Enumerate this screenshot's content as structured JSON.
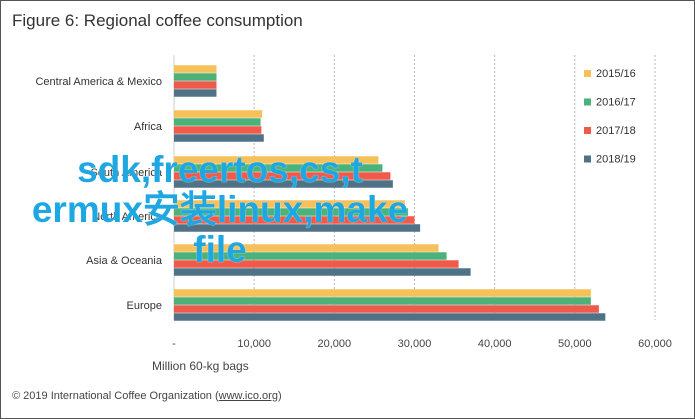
{
  "title": "Figure 6: Regional coffee consumption",
  "footer": {
    "prefix": "© 2019 International Coffee Organization (",
    "link": "www.ico.org",
    "suffix": ")"
  },
  "overlay_text": "sdk,freertos,cs,t\nermux安装linux,make\nfile",
  "chart_data": {
    "type": "bar",
    "orientation": "horizontal",
    "title": "Figure 6: Regional coffee consumption",
    "xlabel": "Million 60-kg bags",
    "ylabel": "",
    "xlim": [
      0,
      60000
    ],
    "x_ticks": [
      0,
      10000,
      20000,
      30000,
      40000,
      50000,
      60000
    ],
    "x_tick_labels": [
      "-",
      "10,000",
      "20,000",
      "30,000",
      "40,000",
      "50,000",
      "60,000"
    ],
    "grid": "vertical dashed",
    "legend_position": "top-right",
    "categories": [
      "Central America & Mexico",
      "Africa",
      "South America",
      "North America",
      "Asia & Oceania",
      "Europe"
    ],
    "series": [
      {
        "name": "2015/16",
        "color": "#F6C15A",
        "values": [
          5300,
          11000,
          25500,
          28800,
          33000,
          52000
        ]
      },
      {
        "name": "2016/17",
        "color": "#4DB27A",
        "values": [
          5300,
          10800,
          26000,
          29200,
          34000,
          52000
        ]
      },
      {
        "name": "2017/18",
        "color": "#EF5A4A",
        "values": [
          5300,
          10900,
          27000,
          30000,
          35500,
          53000
        ]
      },
      {
        "name": "2018/19",
        "color": "#4F7287",
        "values": [
          5300,
          11200,
          27300,
          30700,
          37000,
          53800
        ]
      }
    ]
  }
}
